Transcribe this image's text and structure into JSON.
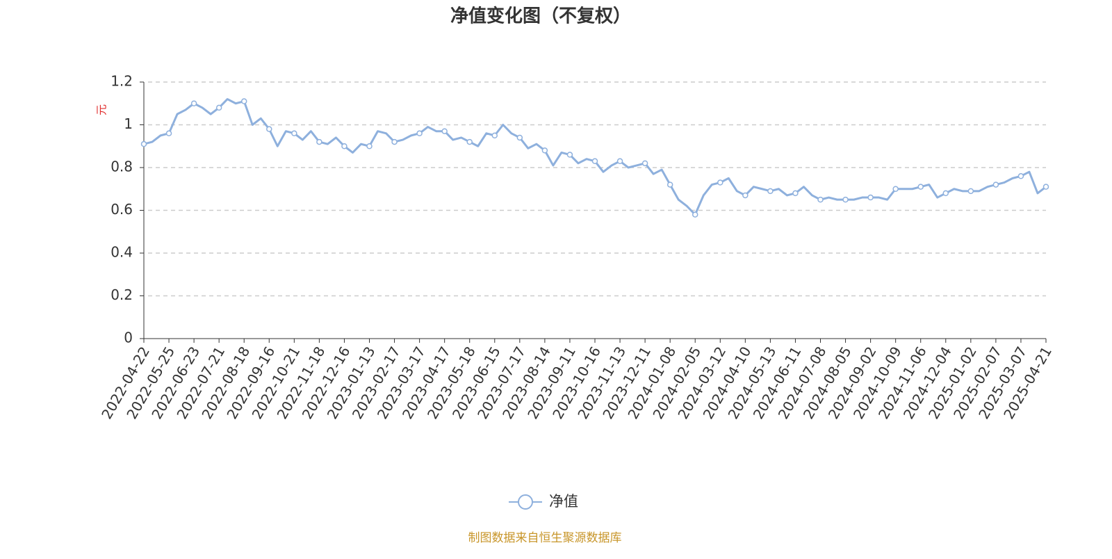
{
  "chart_data": {
    "type": "line",
    "title": "净值变化图（不复权）",
    "y_label": "元",
    "footer": "制图数据来自恒生聚源数据库",
    "categories": [
      "2022-04-22",
      null,
      null,
      "2022-05-25",
      null,
      null,
      "2022-06-23",
      null,
      null,
      "2022-07-21",
      null,
      null,
      "2022-08-18",
      null,
      null,
      "2022-09-16",
      null,
      null,
      "2022-10-21",
      null,
      null,
      "2022-11-18",
      null,
      null,
      "2022-12-16",
      null,
      null,
      "2023-01-13",
      null,
      null,
      "2023-02-17",
      null,
      null,
      "2023-03-17",
      null,
      null,
      "2023-04-17",
      null,
      null,
      "2023-05-18",
      null,
      null,
      "2023-06-15",
      null,
      null,
      "2023-07-17",
      null,
      null,
      "2023-08-14",
      null,
      null,
      "2023-09-11",
      null,
      null,
      "2023-10-16",
      null,
      null,
      "2023-11-13",
      null,
      null,
      "2023-12-11",
      null,
      null,
      "2024-01-08",
      null,
      null,
      "2024-02-05",
      null,
      null,
      "2024-03-12",
      null,
      null,
      "2024-04-10",
      null,
      null,
      "2024-05-13",
      null,
      null,
      "2024-06-11",
      null,
      null,
      "2024-07-08",
      null,
      null,
      "2024-08-05",
      null,
      null,
      "2024-09-02",
      null,
      null,
      "2024-10-09",
      null,
      null,
      "2024-11-06",
      null,
      null,
      "2024-12-04",
      null,
      null,
      "2025-01-02",
      null,
      null,
      "2025-02-07",
      null,
      null,
      "2025-03-07",
      null,
      null,
      "2025-04-21"
    ],
    "series": [
      {
        "name": "净值",
        "color": "#8eb0dd",
        "values": [
          0.91,
          0.92,
          0.95,
          0.96,
          1.05,
          1.07,
          1.1,
          1.08,
          1.05,
          1.08,
          1.12,
          1.1,
          1.11,
          1.0,
          1.03,
          0.98,
          0.9,
          0.97,
          0.96,
          0.93,
          0.97,
          0.92,
          0.91,
          0.94,
          0.9,
          0.87,
          0.91,
          0.9,
          0.97,
          0.96,
          0.92,
          0.93,
          0.95,
          0.96,
          0.99,
          0.97,
          0.97,
          0.93,
          0.94,
          0.92,
          0.9,
          0.96,
          0.95,
          1.0,
          0.96,
          0.94,
          0.89,
          0.91,
          0.88,
          0.81,
          0.87,
          0.86,
          0.82,
          0.84,
          0.83,
          0.78,
          0.81,
          0.83,
          0.8,
          0.81,
          0.82,
          0.77,
          0.79,
          0.72,
          0.65,
          0.62,
          0.58,
          0.67,
          0.72,
          0.73,
          0.75,
          0.69,
          0.67,
          0.71,
          0.7,
          0.69,
          0.7,
          0.67,
          0.68,
          0.71,
          0.67,
          0.65,
          0.66,
          0.65,
          0.65,
          0.65,
          0.66,
          0.66,
          0.66,
          0.65,
          0.7,
          0.7,
          0.7,
          0.71,
          0.72,
          0.66,
          0.68,
          0.7,
          0.69,
          0.69,
          0.69,
          0.71,
          0.72,
          0.73,
          0.75,
          0.76,
          0.78,
          0.68,
          0.71
        ]
      }
    ],
    "ylim": [
      0,
      1.2
    ],
    "yticks": [
      0,
      0.2,
      0.4,
      0.6,
      0.8,
      1,
      1.2
    ],
    "grid": true
  }
}
